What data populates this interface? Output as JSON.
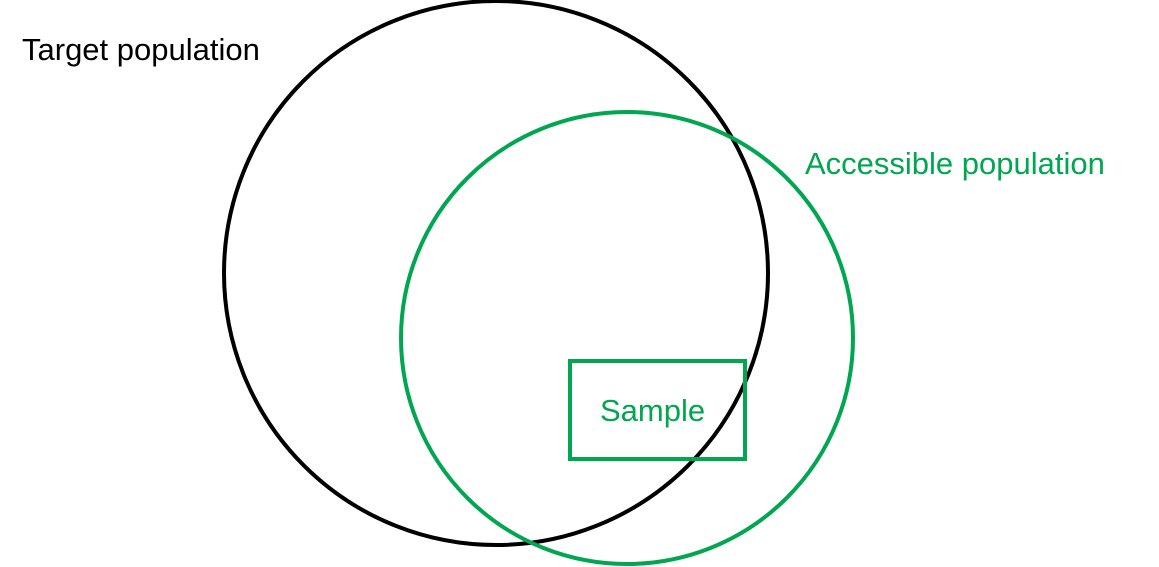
{
  "diagram": {
    "target_population": {
      "label": "Target population",
      "color": "#000000"
    },
    "accessible_population": {
      "label": "Accessible population",
      "color": "#00A650"
    },
    "sample": {
      "label": "Sample",
      "color": "#00A650"
    }
  }
}
